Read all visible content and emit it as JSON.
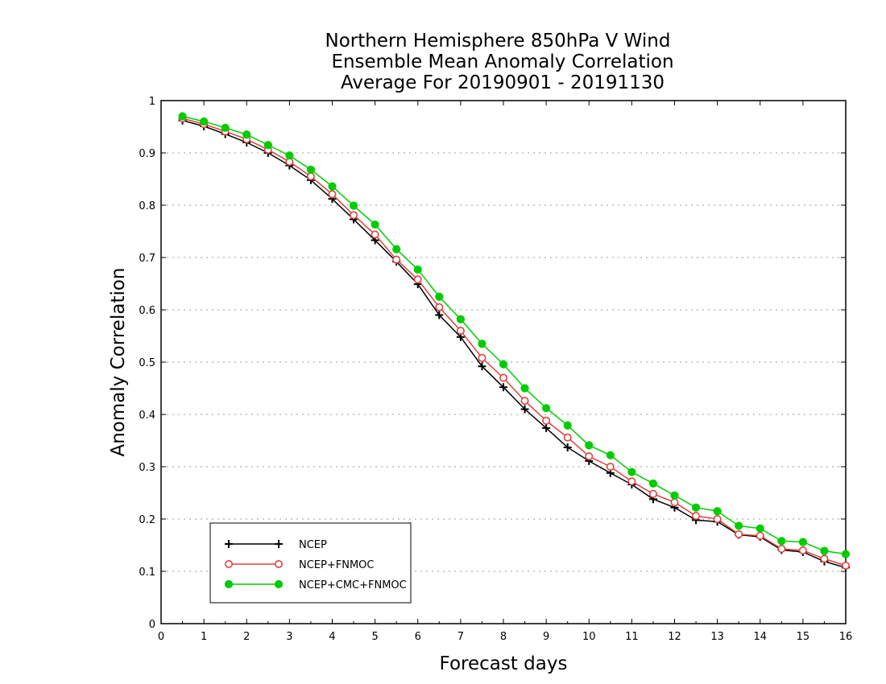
{
  "chart_data": {
    "type": "line",
    "title": [
      "Northern Hemisphere 850hPa V Wind",
      "Ensemble Mean Anomaly Correlation",
      "Average For 20190901 - 20191130"
    ],
    "xlabel": "Forecast days",
    "ylabel": "Anomaly Correlation",
    "xlim": [
      0,
      16
    ],
    "ylim": [
      0,
      1
    ],
    "x_ticks": [
      "0",
      "1",
      "2",
      "3",
      "4",
      "5",
      "6",
      "7",
      "8",
      "9",
      "10",
      "11",
      "12",
      "13",
      "14",
      "15",
      "16"
    ],
    "y_ticks": [
      "0",
      "0.1",
      "0.2",
      "0.3",
      "0.4",
      "0.5",
      "0.6",
      "0.7",
      "0.8",
      "0.9",
      "1"
    ],
    "grid": "horizontal dotted",
    "legend_position": "bottom-left",
    "x": [
      0.5,
      1,
      1.5,
      2,
      2.5,
      3,
      3.5,
      4,
      4.5,
      5,
      5.5,
      6,
      6.5,
      7,
      7.5,
      8,
      8.5,
      9,
      9.5,
      10,
      10.5,
      11,
      11.5,
      12,
      12.5,
      13,
      13.5,
      14,
      14.5,
      15,
      15.5,
      16
    ],
    "series": [
      {
        "name": "NCEP",
        "color": "#000000",
        "marker": "plus",
        "values": [
          0.962,
          0.951,
          0.936,
          0.92,
          0.9,
          0.876,
          0.848,
          0.812,
          0.773,
          0.733,
          0.692,
          0.649,
          0.59,
          0.548,
          0.492,
          0.452,
          0.41,
          0.374,
          0.337,
          0.311,
          0.288,
          0.266,
          0.238,
          0.222,
          0.198,
          0.195,
          0.17,
          0.166,
          0.141,
          0.137,
          0.119,
          0.107
        ]
      },
      {
        "name": "NCEP+FNMOC",
        "color": "#e04040",
        "marker": "open-circle",
        "values": [
          0.966,
          0.955,
          0.941,
          0.926,
          0.906,
          0.883,
          0.855,
          0.821,
          0.781,
          0.744,
          0.696,
          0.658,
          0.605,
          0.56,
          0.508,
          0.47,
          0.426,
          0.388,
          0.356,
          0.32,
          0.3,
          0.272,
          0.248,
          0.232,
          0.206,
          0.2,
          0.171,
          0.168,
          0.143,
          0.14,
          0.124,
          0.111
        ]
      },
      {
        "name": "NCEP+CMC+FNMOC",
        "color": "#00cc00",
        "marker": "filled-circle",
        "values": [
          0.97,
          0.96,
          0.948,
          0.935,
          0.915,
          0.895,
          0.868,
          0.836,
          0.799,
          0.763,
          0.716,
          0.677,
          0.625,
          0.582,
          0.535,
          0.496,
          0.45,
          0.412,
          0.379,
          0.341,
          0.322,
          0.29,
          0.268,
          0.245,
          0.222,
          0.215,
          0.187,
          0.182,
          0.158,
          0.156,
          0.139,
          0.133
        ]
      }
    ]
  }
}
